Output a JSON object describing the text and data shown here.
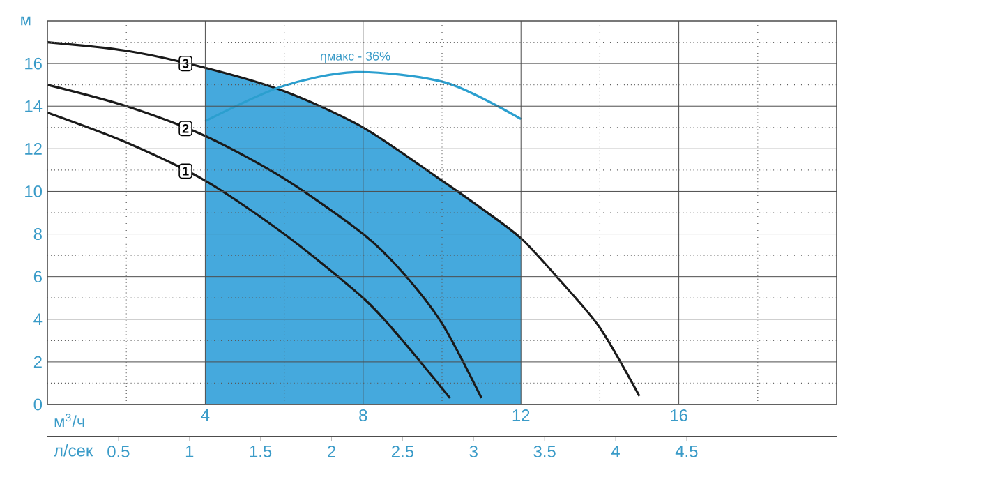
{
  "chart_data": {
    "type": "line",
    "xlabel": "м$^{3}$/ч",
    "ylabel": "м",
    "x2label": "л/сек",
    "xlim": [
      0,
      20
    ],
    "ylim": [
      0,
      18
    ],
    "x2lim": [
      0,
      5.556
    ],
    "xticks": [
      {
        "value": 2,
        "label": null
      },
      4,
      {
        "value": 6,
        "label": null
      },
      8,
      {
        "value": 10,
        "label": null
      },
      12,
      {
        "value": 14,
        "label": null
      },
      16,
      {
        "value": 18,
        "label": null
      }
    ],
    "yticks": [
      0,
      {
        "value": 1,
        "label": null
      },
      2,
      {
        "value": 3,
        "label": null
      },
      4,
      {
        "value": 5,
        "label": null
      },
      6,
      {
        "value": 7,
        "label": null
      },
      8,
      {
        "value": 9,
        "label": null
      },
      10,
      {
        "value": 11,
        "label": null
      },
      12,
      {
        "value": 13,
        "label": null
      },
      14,
      {
        "value": 15,
        "label": null
      },
      16,
      {
        "value": 17,
        "label": null
      }
    ],
    "x2ticks": [
      0.5,
      1,
      1.5,
      2,
      2.5,
      3,
      3.5,
      4,
      4.5
    ],
    "grid": true,
    "series": [
      {
        "type": "area",
        "color": "#45a9dd",
        "x": [
          4,
          6,
          8,
          10,
          11,
          12
        ],
        "values": [
          15.8,
          14.7,
          13,
          10.5,
          9.2,
          7.8
        ]
      },
      {
        "name": "1",
        "color": "#1a1a1a",
        "x": [
          0,
          2,
          4,
          6,
          8,
          9,
          10.2
        ],
        "values": [
          13.7,
          12.3,
          10.5,
          8,
          5,
          3,
          0.3
        ]
      },
      {
        "name": "2",
        "color": "#1a1a1a",
        "x": [
          0,
          2,
          4,
          6,
          8,
          9,
          10,
          11
        ],
        "values": [
          15,
          14,
          12.6,
          10.6,
          8,
          6.2,
          3.8,
          0.3
        ]
      },
      {
        "name": "3",
        "color": "#1a1a1a",
        "x": [
          0,
          2,
          4,
          6,
          8,
          10,
          11,
          12,
          13,
          14,
          15
        ],
        "values": [
          17,
          16.6,
          15.8,
          14.7,
          13,
          10.5,
          9.2,
          7.8,
          5.8,
          3.6,
          0.4
        ]
      },
      {
        "color": "#2b9fcf",
        "x": [
          4,
          5.9,
          7.8,
          10.1,
          12
        ],
        "values": [
          13.3,
          14.9,
          15.6,
          15.1,
          13.4
        ]
      }
    ],
    "annotations": [
      {
        "text": "ηмакс - 36%",
        "x": 7.8,
        "y": 15.6
      }
    ]
  }
}
